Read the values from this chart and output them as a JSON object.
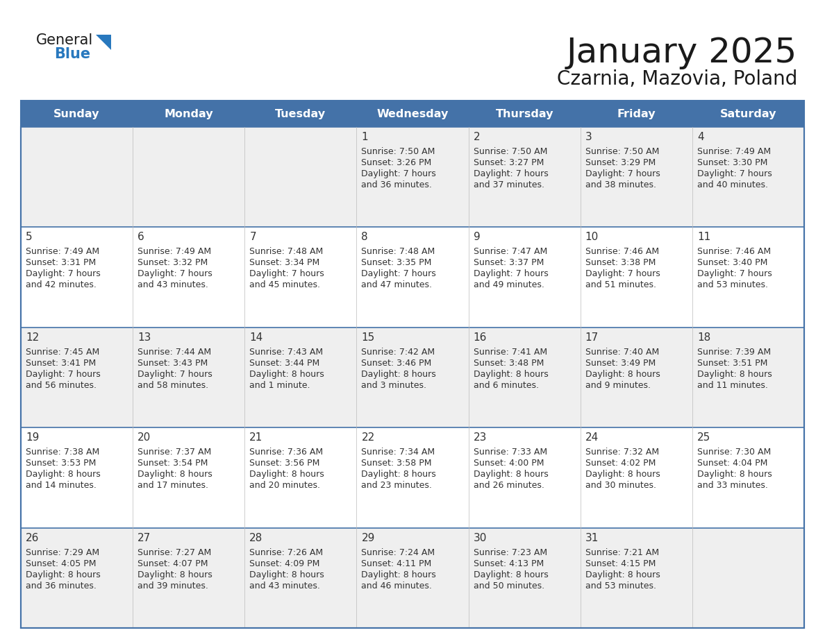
{
  "title": "January 2025",
  "subtitle": "Czarnia, Mazovia, Poland",
  "days_of_week": [
    "Sunday",
    "Monday",
    "Tuesday",
    "Wednesday",
    "Thursday",
    "Friday",
    "Saturday"
  ],
  "header_bg_color": "#4472a8",
  "header_text_color": "#FFFFFF",
  "cell_bg_color_even": "#EFEFEF",
  "cell_bg_color_odd": "#FFFFFF",
  "border_color": "#4472a8",
  "title_color": "#1a1a1a",
  "subtitle_color": "#1a1a1a",
  "logo_general_color": "#1a1a1a",
  "logo_blue_color": "#2878be",
  "calendar_data": [
    {
      "day": 1,
      "col": 3,
      "row": 0,
      "sunrise": "7:50 AM",
      "sunset": "3:26 PM",
      "daylight": "7 hours\nand 36 minutes."
    },
    {
      "day": 2,
      "col": 4,
      "row": 0,
      "sunrise": "7:50 AM",
      "sunset": "3:27 PM",
      "daylight": "7 hours\nand 37 minutes."
    },
    {
      "day": 3,
      "col": 5,
      "row": 0,
      "sunrise": "7:50 AM",
      "sunset": "3:29 PM",
      "daylight": "7 hours\nand 38 minutes."
    },
    {
      "day": 4,
      "col": 6,
      "row": 0,
      "sunrise": "7:49 AM",
      "sunset": "3:30 PM",
      "daylight": "7 hours\nand 40 minutes."
    },
    {
      "day": 5,
      "col": 0,
      "row": 1,
      "sunrise": "7:49 AM",
      "sunset": "3:31 PM",
      "daylight": "7 hours\nand 42 minutes."
    },
    {
      "day": 6,
      "col": 1,
      "row": 1,
      "sunrise": "7:49 AM",
      "sunset": "3:32 PM",
      "daylight": "7 hours\nand 43 minutes."
    },
    {
      "day": 7,
      "col": 2,
      "row": 1,
      "sunrise": "7:48 AM",
      "sunset": "3:34 PM",
      "daylight": "7 hours\nand 45 minutes."
    },
    {
      "day": 8,
      "col": 3,
      "row": 1,
      "sunrise": "7:48 AM",
      "sunset": "3:35 PM",
      "daylight": "7 hours\nand 47 minutes."
    },
    {
      "day": 9,
      "col": 4,
      "row": 1,
      "sunrise": "7:47 AM",
      "sunset": "3:37 PM",
      "daylight": "7 hours\nand 49 minutes."
    },
    {
      "day": 10,
      "col": 5,
      "row": 1,
      "sunrise": "7:46 AM",
      "sunset": "3:38 PM",
      "daylight": "7 hours\nand 51 minutes."
    },
    {
      "day": 11,
      "col": 6,
      "row": 1,
      "sunrise": "7:46 AM",
      "sunset": "3:40 PM",
      "daylight": "7 hours\nand 53 minutes."
    },
    {
      "day": 12,
      "col": 0,
      "row": 2,
      "sunrise": "7:45 AM",
      "sunset": "3:41 PM",
      "daylight": "7 hours\nand 56 minutes."
    },
    {
      "day": 13,
      "col": 1,
      "row": 2,
      "sunrise": "7:44 AM",
      "sunset": "3:43 PM",
      "daylight": "7 hours\nand 58 minutes."
    },
    {
      "day": 14,
      "col": 2,
      "row": 2,
      "sunrise": "7:43 AM",
      "sunset": "3:44 PM",
      "daylight": "8 hours\nand 1 minute."
    },
    {
      "day": 15,
      "col": 3,
      "row": 2,
      "sunrise": "7:42 AM",
      "sunset": "3:46 PM",
      "daylight": "8 hours\nand 3 minutes."
    },
    {
      "day": 16,
      "col": 4,
      "row": 2,
      "sunrise": "7:41 AM",
      "sunset": "3:48 PM",
      "daylight": "8 hours\nand 6 minutes."
    },
    {
      "day": 17,
      "col": 5,
      "row": 2,
      "sunrise": "7:40 AM",
      "sunset": "3:49 PM",
      "daylight": "8 hours\nand 9 minutes."
    },
    {
      "day": 18,
      "col": 6,
      "row": 2,
      "sunrise": "7:39 AM",
      "sunset": "3:51 PM",
      "daylight": "8 hours\nand 11 minutes."
    },
    {
      "day": 19,
      "col": 0,
      "row": 3,
      "sunrise": "7:38 AM",
      "sunset": "3:53 PM",
      "daylight": "8 hours\nand 14 minutes."
    },
    {
      "day": 20,
      "col": 1,
      "row": 3,
      "sunrise": "7:37 AM",
      "sunset": "3:54 PM",
      "daylight": "8 hours\nand 17 minutes."
    },
    {
      "day": 21,
      "col": 2,
      "row": 3,
      "sunrise": "7:36 AM",
      "sunset": "3:56 PM",
      "daylight": "8 hours\nand 20 minutes."
    },
    {
      "day": 22,
      "col": 3,
      "row": 3,
      "sunrise": "7:34 AM",
      "sunset": "3:58 PM",
      "daylight": "8 hours\nand 23 minutes."
    },
    {
      "day": 23,
      "col": 4,
      "row": 3,
      "sunrise": "7:33 AM",
      "sunset": "4:00 PM",
      "daylight": "8 hours\nand 26 minutes."
    },
    {
      "day": 24,
      "col": 5,
      "row": 3,
      "sunrise": "7:32 AM",
      "sunset": "4:02 PM",
      "daylight": "8 hours\nand 30 minutes."
    },
    {
      "day": 25,
      "col": 6,
      "row": 3,
      "sunrise": "7:30 AM",
      "sunset": "4:04 PM",
      "daylight": "8 hours\nand 33 minutes."
    },
    {
      "day": 26,
      "col": 0,
      "row": 4,
      "sunrise": "7:29 AM",
      "sunset": "4:05 PM",
      "daylight": "8 hours\nand 36 minutes."
    },
    {
      "day": 27,
      "col": 1,
      "row": 4,
      "sunrise": "7:27 AM",
      "sunset": "4:07 PM",
      "daylight": "8 hours\nand 39 minutes."
    },
    {
      "day": 28,
      "col": 2,
      "row": 4,
      "sunrise": "7:26 AM",
      "sunset": "4:09 PM",
      "daylight": "8 hours\nand 43 minutes."
    },
    {
      "day": 29,
      "col": 3,
      "row": 4,
      "sunrise": "7:24 AM",
      "sunset": "4:11 PM",
      "daylight": "8 hours\nand 46 minutes."
    },
    {
      "day": 30,
      "col": 4,
      "row": 4,
      "sunrise": "7:23 AM",
      "sunset": "4:13 PM",
      "daylight": "8 hours\nand 50 minutes."
    },
    {
      "day": 31,
      "col": 5,
      "row": 4,
      "sunrise": "7:21 AM",
      "sunset": "4:15 PM",
      "daylight": "8 hours\nand 53 minutes."
    }
  ]
}
